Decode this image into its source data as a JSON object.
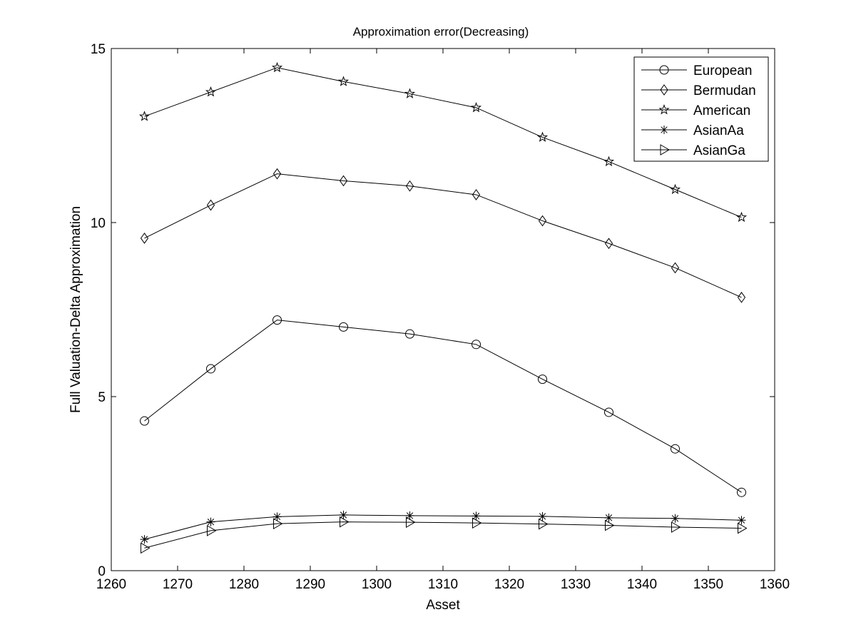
{
  "chart_data": {
    "type": "line",
    "title": "Approximation error(Decreasing)",
    "xlabel": "Asset",
    "ylabel": "Full Valuation-Delta Approximation",
    "xlim": [
      1260,
      1360
    ],
    "ylim": [
      0,
      15
    ],
    "xticks": [
      1260,
      1270,
      1280,
      1290,
      1300,
      1310,
      1320,
      1330,
      1340,
      1350,
      1360
    ],
    "yticks": [
      0,
      5,
      10,
      15
    ],
    "legend_position": "top-right",
    "grid": false,
    "x": [
      1265,
      1275,
      1285,
      1295,
      1305,
      1315,
      1325,
      1335,
      1345,
      1355
    ],
    "series": [
      {
        "name": "European",
        "marker": "circle",
        "values": [
          4.3,
          5.8,
          7.2,
          7.0,
          6.8,
          6.5,
          5.5,
          4.55,
          3.5,
          2.25
        ]
      },
      {
        "name": "Bermudan",
        "marker": "diamond",
        "values": [
          9.55,
          10.5,
          11.4,
          11.2,
          11.05,
          10.8,
          10.05,
          9.4,
          8.7,
          7.85
        ]
      },
      {
        "name": "American",
        "marker": "pentagram",
        "values": [
          13.05,
          13.75,
          14.45,
          14.05,
          13.7,
          13.3,
          12.45,
          11.75,
          10.95,
          10.15
        ]
      },
      {
        "name": "AsianAa",
        "marker": "asterisk",
        "values": [
          0.9,
          1.4,
          1.55,
          1.6,
          1.58,
          1.57,
          1.56,
          1.52,
          1.5,
          1.45
        ]
      },
      {
        "name": "AsianGa",
        "marker": "triangle-right",
        "values": [
          0.65,
          1.15,
          1.35,
          1.4,
          1.39,
          1.37,
          1.34,
          1.3,
          1.25,
          1.22
        ]
      }
    ]
  }
}
